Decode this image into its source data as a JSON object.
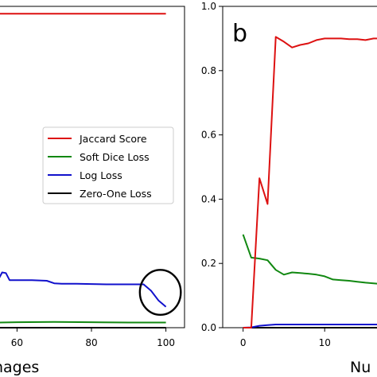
{
  "chart_data": [
    {
      "type": "line",
      "xlabel_fragment": "nages",
      "xticks": [
        60,
        80,
        100
      ],
      "xtick_labels": [
        "60",
        "80",
        "100"
      ],
      "xlim": [
        55,
        105
      ],
      "ylim": [
        0,
        1
      ],
      "legend": {
        "placement": "right",
        "entries": [
          "Jaccard Score",
          "Soft Dice Loss",
          "Log Loss",
          "Zero-One Loss"
        ]
      },
      "series": [
        {
          "name": "Jaccard Score",
          "color": "#dd1111",
          "x": [
            55,
            60,
            70,
            80,
            90,
            100
          ],
          "y": [
            0.977,
            0.977,
            0.977,
            0.977,
            0.977,
            0.977
          ]
        },
        {
          "name": "Soft Dice Loss",
          "color": "#118811",
          "x": [
            55,
            60,
            70,
            80,
            90,
            100
          ],
          "y": [
            0.016,
            0.017,
            0.018,
            0.017,
            0.016,
            0.016
          ]
        },
        {
          "name": "Log Loss",
          "color": "#1111cc",
          "x": [
            55,
            56,
            57,
            58,
            60,
            64,
            68,
            70,
            72,
            76,
            80,
            84,
            88,
            92,
            94,
            96,
            98,
            100
          ],
          "y": [
            0.15,
            0.172,
            0.17,
            0.148,
            0.148,
            0.148,
            0.146,
            0.138,
            0.137,
            0.137,
            0.136,
            0.135,
            0.135,
            0.135,
            0.135,
            0.115,
            0.085,
            0.065
          ]
        },
        {
          "name": "Zero-One Loss",
          "color": "#000000",
          "x": [
            55,
            100
          ],
          "y": [
            0.0,
            0.0
          ]
        }
      ],
      "annotation": {
        "shape": "ellipse",
        "around_x": [
          93,
          104
        ],
        "around_y": [
          0.04,
          0.18
        ]
      }
    },
    {
      "type": "line",
      "panel_label": "b",
      "xlabel_fragment": "Nu",
      "xticks": [
        0,
        10
      ],
      "xtick_labels": [
        "0",
        "10"
      ],
      "xlim": [
        -2.5,
        17
      ],
      "yticks": [
        0.0,
        0.2,
        0.4,
        0.6,
        0.8,
        1.0
      ],
      "ytick_labels": [
        "0.0",
        "0.2",
        "0.4",
        "0.6",
        "0.8",
        "1.0"
      ],
      "ylim": [
        0,
        1
      ],
      "series": [
        {
          "name": "Jaccard Score",
          "color": "#dd1111",
          "x": [
            0,
            1,
            2,
            3,
            4,
            5,
            6,
            7,
            8,
            9,
            10,
            11,
            12,
            13,
            14,
            15,
            16,
            17
          ],
          "y": [
            0.0,
            0.0,
            0.465,
            0.385,
            0.905,
            0.89,
            0.872,
            0.88,
            0.885,
            0.895,
            0.9,
            0.9,
            0.9,
            0.898,
            0.898,
            0.895,
            0.9,
            0.9
          ]
        },
        {
          "name": "Soft Dice Loss",
          "color": "#118811",
          "x": [
            0,
            1,
            2,
            3,
            4,
            5,
            6,
            7,
            8,
            9,
            10,
            11,
            12,
            13,
            14,
            15,
            16,
            17
          ],
          "y": [
            0.29,
            0.218,
            0.215,
            0.21,
            0.18,
            0.165,
            0.172,
            0.17,
            0.168,
            0.165,
            0.16,
            0.15,
            0.148,
            0.146,
            0.143,
            0.14,
            0.138,
            0.136
          ]
        },
        {
          "name": "Log Loss",
          "color": "#1111cc",
          "x": [
            0,
            1,
            2,
            3,
            4,
            5,
            6,
            8,
            10,
            12,
            14,
            17
          ],
          "y": [
            0.0,
            0.001,
            0.006,
            0.008,
            0.01,
            0.01,
            0.01,
            0.01,
            0.01,
            0.01,
            0.01,
            0.01
          ]
        },
        {
          "name": "Zero-One Loss",
          "color": "#000000",
          "x": [
            0,
            17
          ],
          "y": [
            0.0,
            0.0
          ]
        }
      ]
    }
  ]
}
